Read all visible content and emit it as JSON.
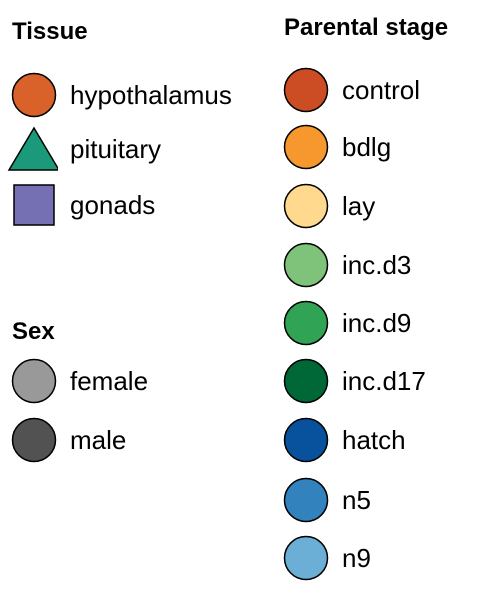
{
  "tissue": {
    "title": "Tissue",
    "items": [
      {
        "label": "hypothalamus",
        "shape": "circle",
        "color": "#d9622b"
      },
      {
        "label": "pituitary",
        "shape": "triangle",
        "color": "#1a9a7a"
      },
      {
        "label": "gonads",
        "shape": "square",
        "color": "#7570b3"
      }
    ]
  },
  "sex": {
    "title": "Sex",
    "items": [
      {
        "label": "female",
        "shape": "circle",
        "color": "#999999"
      },
      {
        "label": "male",
        "shape": "circle",
        "color": "#525252"
      }
    ]
  },
  "stage": {
    "title": "Parental stage",
    "items": [
      {
        "label": "control",
        "shape": "circle",
        "color": "#cc4c24"
      },
      {
        "label": "bdlg",
        "shape": "circle",
        "color": "#f6982d"
      },
      {
        "label": "lay",
        "shape": "circle",
        "color": "#fed98e"
      },
      {
        "label": "inc.d3",
        "shape": "circle",
        "color": "#7fc37a"
      },
      {
        "label": "inc.d9",
        "shape": "circle",
        "color": "#31a354"
      },
      {
        "label": "inc.d17",
        "shape": "circle",
        "color": "#006837"
      },
      {
        "label": "hatch",
        "shape": "circle",
        "color": "#08519c"
      },
      {
        "label": "n5",
        "shape": "circle",
        "color": "#3182bd"
      },
      {
        "label": "n9",
        "shape": "circle",
        "color": "#6baed6"
      }
    ]
  }
}
